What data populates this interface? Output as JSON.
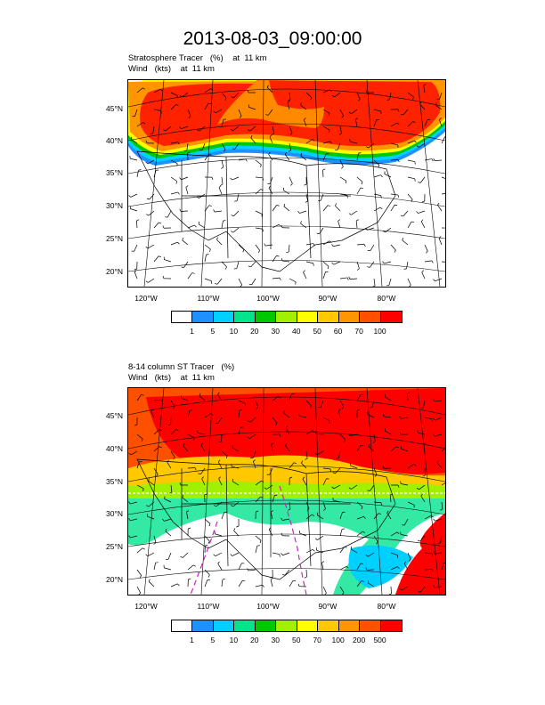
{
  "title": "2013-08-03_09:00:00",
  "panels": [
    {
      "id": "top",
      "field_label": "Stratosphere Tracer",
      "field_units": "(%)",
      "field_level": "at  11 km",
      "wind_label": "Wind",
      "wind_units": "(kts)",
      "wind_level": "at  11 km",
      "lat_labels": [
        "45°N",
        "40°N",
        "35°N",
        "30°N",
        "25°N",
        "20°N"
      ],
      "lon_labels": [
        "120°W",
        "110°W",
        "100°W",
        "90°W",
        "80°W"
      ],
      "colorbar_labels": [
        "1",
        "5",
        "10",
        "20",
        "30",
        "40",
        "50",
        "60",
        "70",
        "100"
      ],
      "colorbar_colors": [
        "#ffffff",
        "#1e90ff",
        "#00d0ff",
        "#00e48c",
        "#00c800",
        "#a0f000",
        "#ffff00",
        "#ffc800",
        "#ff9600",
        "#ff5000",
        "#ff0000"
      ]
    },
    {
      "id": "bottom",
      "field_label": "8-14 column ST Tracer",
      "field_units": "(%)",
      "field_level": "",
      "wind_label": "Wind",
      "wind_units": "(kts)",
      "wind_level": "at  11 km",
      "lat_labels": [
        "45°N",
        "40°N",
        "35°N",
        "30°N",
        "25°N",
        "20°N"
      ],
      "lon_labels": [
        "120°W",
        "110°W",
        "100°W",
        "90°W",
        "80°W"
      ],
      "colorbar_labels": [
        "1",
        "5",
        "10",
        "20",
        "30",
        "50",
        "70",
        "100",
        "200",
        "500"
      ],
      "colorbar_colors": [
        "#ffffff",
        "#1e90ff",
        "#00d0ff",
        "#00e48c",
        "#00c800",
        "#a0f000",
        "#ffff00",
        "#ffc800",
        "#ff9600",
        "#ff5000",
        "#ff0000"
      ]
    }
  ]
}
